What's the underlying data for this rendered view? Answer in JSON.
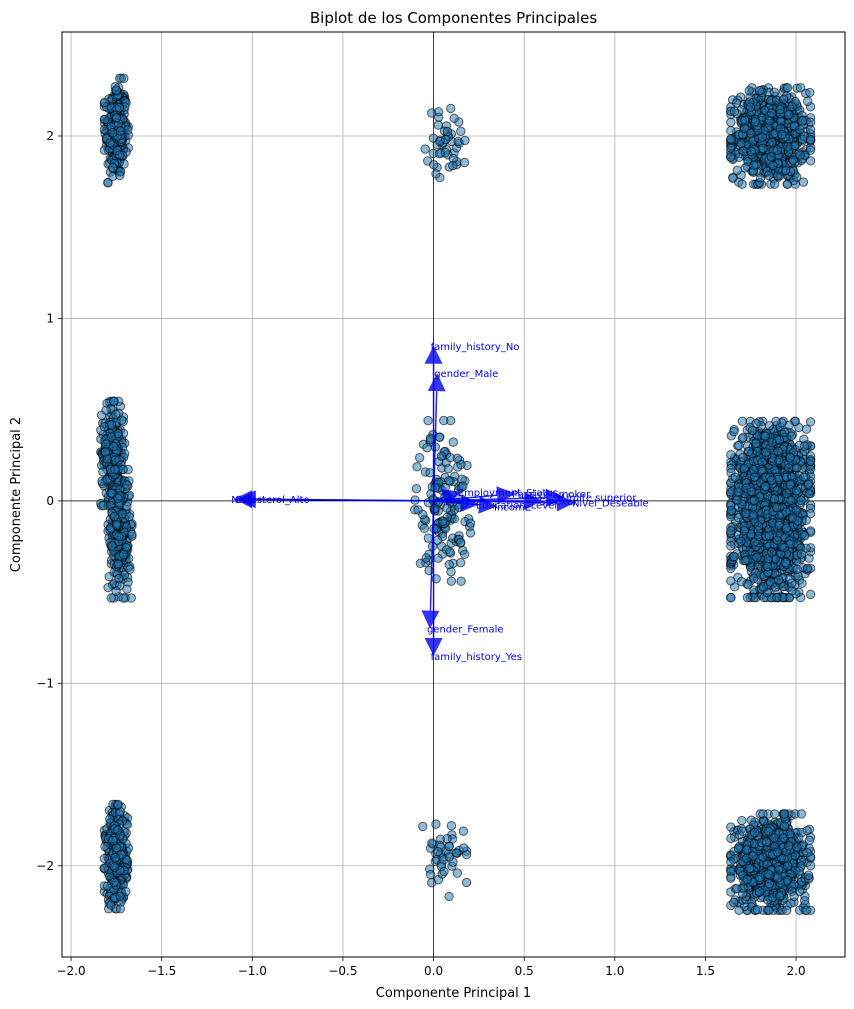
{
  "chart_data": {
    "type": "scatter",
    "title": "Biplot de los Componentes Principales",
    "xlabel": "Componente Principal 1",
    "ylabel": "Componente Principal 2",
    "xlim": [
      -2.05,
      2.27
    ],
    "ylim": [
      -2.5,
      2.57
    ],
    "x_ticks": [
      -2.0,
      -1.5,
      -1.0,
      -0.5,
      0.0,
      0.5,
      1.0,
      1.5,
      2.0
    ],
    "x_tick_labels": [
      "−2.0",
      "−1.5",
      "−1.0",
      "−0.5",
      "0.0",
      "0.5",
      "1.0",
      "1.5",
      "2.0"
    ],
    "y_ticks": [
      -2,
      -1,
      0,
      1,
      2
    ],
    "y_tick_labels": [
      "−2",
      "−1",
      "0",
      "1",
      "2"
    ],
    "grid": true,
    "point_color": "#1f77b4",
    "point_edge_color": "#000000",
    "point_alpha": 0.5,
    "arrow_color": "#0000ee",
    "clusters": [
      {
        "cx": -1.75,
        "cy": 2.03,
        "sx": 0.03,
        "sy": 0.13,
        "n": 300
      },
      {
        "cx": 0.08,
        "cy": 1.97,
        "sx": 0.06,
        "sy": 0.09,
        "n": 45
      },
      {
        "cx": 1.86,
        "cy": 2.0,
        "sx": 0.1,
        "sy": 0.12,
        "n": 800
      },
      {
        "cx": -1.77,
        "cy": 0.26,
        "sx": 0.03,
        "sy": 0.13,
        "n": 260
      },
      {
        "cx": -1.73,
        "cy": -0.18,
        "sx": 0.03,
        "sy": 0.16,
        "n": 260
      },
      {
        "cx": 0.05,
        "cy": 0.0,
        "sx": 0.07,
        "sy": 0.2,
        "n": 150
      },
      {
        "cx": 1.86,
        "cy": 0.15,
        "sx": 0.1,
        "sy": 0.13,
        "n": 900
      },
      {
        "cx": 1.86,
        "cy": -0.2,
        "sx": 0.1,
        "sy": 0.15,
        "n": 900
      },
      {
        "cx": -1.75,
        "cy": -1.95,
        "sx": 0.03,
        "sy": 0.13,
        "n": 300
      },
      {
        "cx": 0.05,
        "cy": -1.97,
        "sx": 0.06,
        "sy": 0.09,
        "n": 45
      },
      {
        "cx": 1.86,
        "cy": -1.98,
        "sx": 0.1,
        "sy": 0.12,
        "n": 800
      }
    ],
    "loadings": [
      {
        "label": "family_history_No",
        "x": 0.0,
        "y": 0.85
      },
      {
        "label": "gender_Male",
        "x": 0.02,
        "y": 0.7
      },
      {
        "label": "gender_Female",
        "x": -0.02,
        "y": -0.7
      },
      {
        "label": "family_history_Yes",
        "x": 0.0,
        "y": -0.85
      },
      {
        "label": "Colesterol_Alto",
        "x": -1.08,
        "y": 0.01
      },
      {
        "label": "Nivel",
        "x": -1.1,
        "y": 0.01
      },
      {
        "label": "Employment_Status",
        "x": 0.15,
        "y": 0.05
      },
      {
        "label": "Passive Smoker",
        "x": 0.45,
        "y": 0.04
      },
      {
        "label": "Límite superior",
        "x": 0.72,
        "y": 0.02
      },
      {
        "label": "Smoker",
        "x": 0.6,
        "y": 0.0
      },
      {
        "label": "Nivel_Deseable",
        "x": 0.78,
        "y": -0.01
      },
      {
        "label": "Education_Level",
        "x": 0.25,
        "y": -0.02
      },
      {
        "label": "Income",
        "x": 0.35,
        "y": -0.03
      }
    ]
  }
}
